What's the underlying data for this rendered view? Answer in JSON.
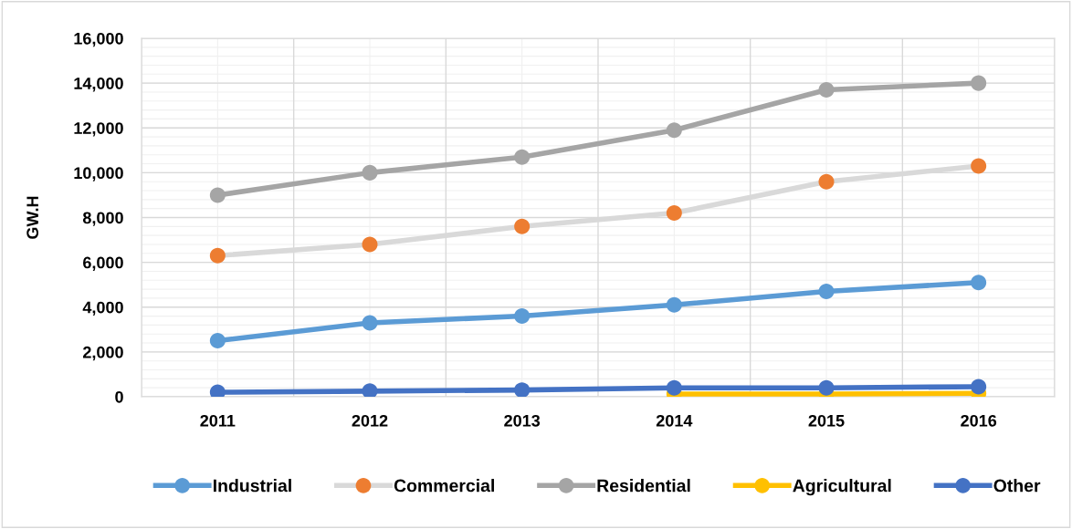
{
  "chart_data": {
    "type": "line",
    "ylabel": "GW.H",
    "categories": [
      "2011",
      "2012",
      "2013",
      "2014",
      "2015",
      "2016"
    ],
    "series": [
      {
        "name": "Industrial",
        "color": "#5b9bd5",
        "values": [
          2500,
          3300,
          3600,
          4100,
          4700,
          5100
        ]
      },
      {
        "name": "Commercial",
        "color": "#d9d9d9",
        "colors": [
          "#ed7d31",
          "#ed7d31",
          "#ed7d31",
          "#ed7d31",
          "#ed7d31",
          "#ed7d31"
        ],
        "values": [
          6300,
          6800,
          7600,
          8200,
          9600,
          10300
        ]
      },
      {
        "name": "Residential",
        "color": "#a5a5a5",
        "values": [
          9000,
          10000,
          10700,
          11900,
          13700,
          14000
        ]
      },
      {
        "name": "Agricultural",
        "color": "#ffc000",
        "values": [
          null,
          null,
          null,
          120,
          120,
          150
        ]
      },
      {
        "name": "Other",
        "color": "#4472c4",
        "values": [
          200,
          250,
          300,
          400,
          400,
          450
        ]
      }
    ],
    "ylim": [
      0,
      16000
    ],
    "yticks": [
      {
        "value": 0,
        "label": "0"
      },
      {
        "value": 2000,
        "label": "2,000"
      },
      {
        "value": 4000,
        "label": "4,000"
      },
      {
        "value": 6000,
        "label": "6,000"
      },
      {
        "value": 8000,
        "label": "8,000"
      },
      {
        "value": 10000,
        "label": "10,000"
      },
      {
        "value": 12000,
        "label": "12,000"
      },
      {
        "value": 14000,
        "label": "14,000"
      },
      {
        "value": 16000,
        "label": "16,000"
      }
    ],
    "grid": true,
    "legend": "bottom",
    "marker": "circle",
    "line_style": "solid"
  }
}
